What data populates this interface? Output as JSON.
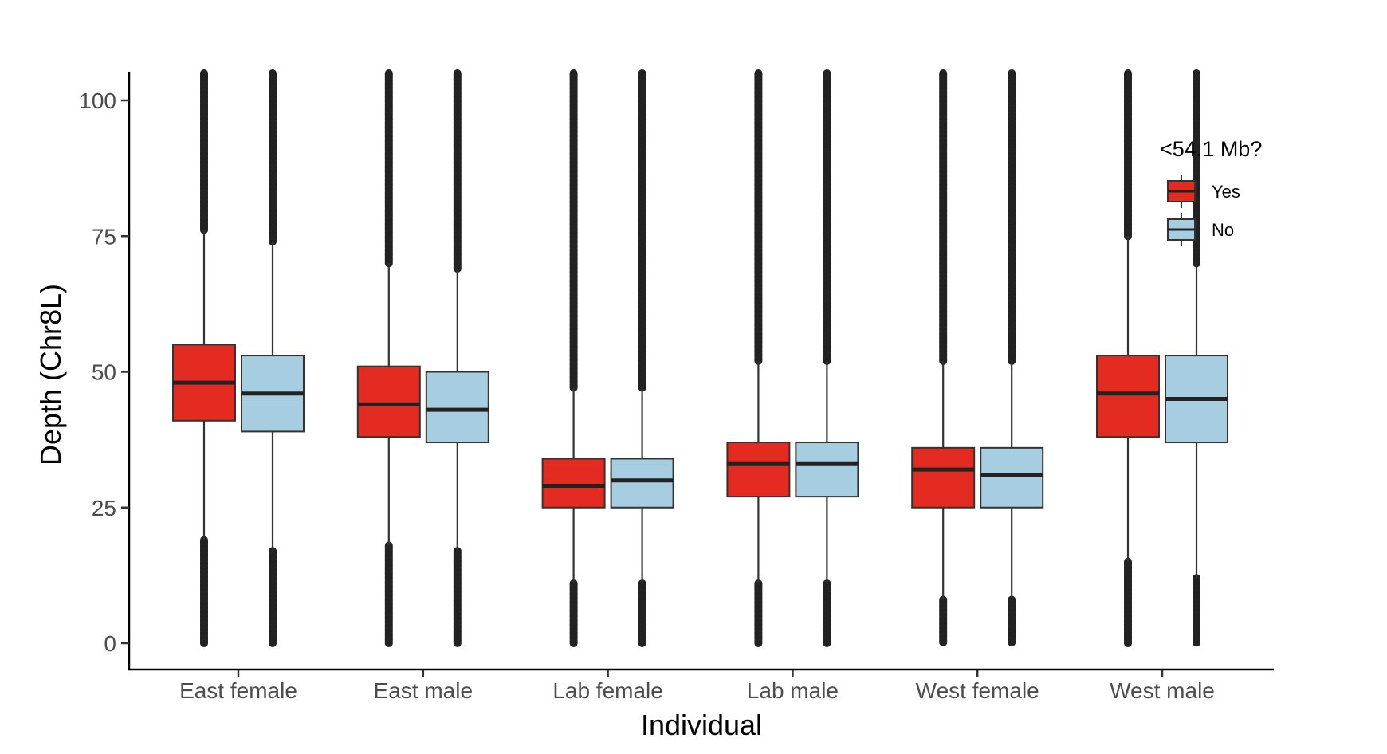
{
  "chart_data": {
    "type": "box",
    "xlabel": "Individual",
    "ylabel": "Depth (Chr8L)",
    "categories": [
      "East female",
      "East male",
      "Lab female",
      "Lab male",
      "West female",
      "West male"
    ],
    "ylim": [
      -5,
      105
    ],
    "y_ticks": [
      0,
      25,
      50,
      75,
      100
    ],
    "grid": false,
    "legend": {
      "title": "<54.1 Mb?",
      "position": "top-right-inside",
      "entries": [
        {
          "label": "Yes",
          "color": "#e32b22"
        },
        {
          "label": "No",
          "color": "#a6cde0"
        }
      ]
    },
    "series": [
      {
        "name": "Yes",
        "color": "#e32b22",
        "boxes": [
          {
            "category": "East female",
            "q1": 41,
            "median": 48,
            "q3": 55,
            "whisker_low": 19,
            "whisker_high": 76,
            "outliers_low": [
              0,
              19
            ],
            "outliers_high": [
              76,
              105
            ]
          },
          {
            "category": "East male",
            "q1": 38,
            "median": 44,
            "q3": 51,
            "whisker_low": 18,
            "whisker_high": 70,
            "outliers_low": [
              0,
              18
            ],
            "outliers_high": [
              70,
              105
            ]
          },
          {
            "category": "Lab female",
            "q1": 25,
            "median": 29,
            "q3": 34,
            "whisker_low": 11,
            "whisker_high": 47,
            "outliers_low": [
              0,
              11
            ],
            "outliers_high": [
              47,
              105
            ]
          },
          {
            "category": "Lab male",
            "q1": 27,
            "median": 33,
            "q3": 37,
            "whisker_low": 11,
            "whisker_high": 52,
            "outliers_low": [
              0,
              11
            ],
            "outliers_high": [
              52,
              105
            ]
          },
          {
            "category": "West female",
            "q1": 25,
            "median": 32,
            "q3": 36,
            "whisker_low": 8,
            "whisker_high": 52,
            "outliers_low": [
              0,
              8
            ],
            "outliers_high": [
              52,
              105
            ]
          },
          {
            "category": "West male",
            "q1": 38,
            "median": 46,
            "q3": 53,
            "whisker_low": 15,
            "whisker_high": 75,
            "outliers_low": [
              0,
              15
            ],
            "outliers_high": [
              75,
              105
            ]
          }
        ]
      },
      {
        "name": "No",
        "color": "#a6cde0",
        "boxes": [
          {
            "category": "East female",
            "q1": 39,
            "median": 46,
            "q3": 53,
            "whisker_low": 17,
            "whisker_high": 74,
            "outliers_low": [
              0,
              17
            ],
            "outliers_high": [
              74,
              105
            ]
          },
          {
            "category": "East male",
            "q1": 37,
            "median": 43,
            "q3": 50,
            "whisker_low": 17,
            "whisker_high": 69,
            "outliers_low": [
              0,
              17
            ],
            "outliers_high": [
              69,
              105
            ]
          },
          {
            "category": "Lab female",
            "q1": 25,
            "median": 30,
            "q3": 34,
            "whisker_low": 11,
            "whisker_high": 47,
            "outliers_low": [
              0,
              11
            ],
            "outliers_high": [
              47,
              105
            ]
          },
          {
            "category": "Lab male",
            "q1": 27,
            "median": 33,
            "q3": 37,
            "whisker_low": 11,
            "whisker_high": 52,
            "outliers_low": [
              0,
              11
            ],
            "outliers_high": [
              52,
              105
            ]
          },
          {
            "category": "West female",
            "q1": 25,
            "median": 31,
            "q3": 36,
            "whisker_low": 8,
            "whisker_high": 52,
            "outliers_low": [
              0,
              8
            ],
            "outliers_high": [
              52,
              105
            ]
          },
          {
            "category": "West male",
            "q1": 37,
            "median": 45,
            "q3": 53,
            "whisker_low": 12,
            "whisker_high": 70,
            "outliers_low": [
              0,
              12
            ],
            "outliers_high": [
              70,
              105
            ]
          }
        ]
      }
    ]
  }
}
